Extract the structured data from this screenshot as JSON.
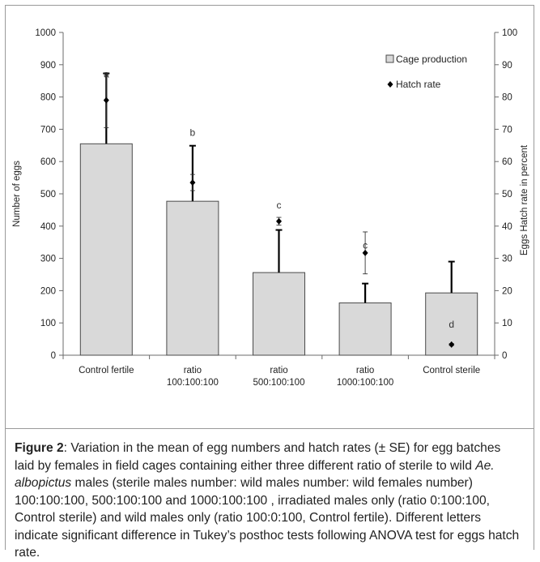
{
  "chart_data": {
    "type": "bar",
    "categories": [
      [
        "Control fertile"
      ],
      [
        "ratio",
        "100:100:100"
      ],
      [
        "ratio",
        "500:100:100"
      ],
      [
        "ratio",
        "1000:100:100"
      ],
      [
        "Control sterile"
      ]
    ],
    "series": [
      {
        "name": "Cage production",
        "type": "bar",
        "axis": "left",
        "values": [
          655,
          477,
          256,
          162,
          193
        ],
        "error": [
          218,
          172,
          132,
          60,
          97
        ]
      },
      {
        "name": "Hatch rate",
        "type": "point",
        "axis": "right",
        "values": [
          79,
          53.5,
          41.5,
          31.7,
          3.3
        ],
        "error": [
          8.5,
          2.5,
          1.2,
          6.5,
          0.3
        ]
      }
    ],
    "letters": [
      "a",
      "b",
      "c",
      "c",
      "d"
    ],
    "letter_positions": [
      860,
      680,
      455,
      330,
      85
    ],
    "ylabel": "Number of eggs",
    "y2label": "Eggs Hatch rate in percent",
    "ylim": [
      0,
      1000
    ],
    "y2lim": [
      0,
      100
    ],
    "yticks": [
      0,
      100,
      200,
      300,
      400,
      500,
      600,
      700,
      800,
      900,
      1000
    ],
    "y2ticks": [
      0,
      10,
      20,
      30,
      40,
      50,
      60,
      70,
      80,
      90,
      100
    ],
    "legend_position": "top-right",
    "colors": {
      "bar_fill": "#d9d9d9",
      "bar_stroke": "#4a4a4a",
      "marker": "#000000"
    }
  },
  "caption": {
    "label": "Figure 2",
    "parts": [
      ": Variation in the mean of egg numbers and hatch rates (± SE) for egg batches laid by females in field cages containing either three different ratio of sterile to wild ",
      "Ae. albopictus",
      " males (sterile males number: wild males number: wild females number) 100:100:100, 500:100:100 and 1000:100:100 , irradiated males only (ratio 0:100:100, Control sterile) and wild males only (ratio 100:0:100, Control fertile). Different letters indicate significant difference in Tukey’s posthoc tests following ANOVA test for eggs hatch rate."
    ]
  }
}
